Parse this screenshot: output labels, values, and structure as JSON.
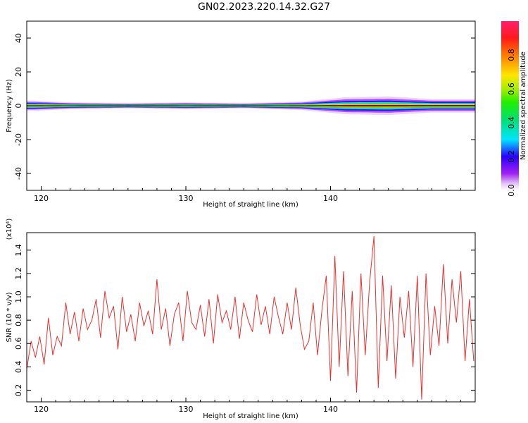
{
  "title": "GN02.2023.220.14.32.G27",
  "chart_data": [
    {
      "type": "heatmap",
      "xlabel": "Height of straight line (km)",
      "ylabel": "Frequency (Hz)",
      "xlim": [
        119,
        150
      ],
      "ylim": [
        -50,
        50
      ],
      "xticks": [
        "120",
        "130",
        "140"
      ],
      "yticks": [
        "40",
        "20",
        "0",
        "-20",
        "-40"
      ],
      "colorbar": {
        "label": "Normalized spectral amplitude",
        "ticks": [
          "0.0",
          "0.2",
          "0.4",
          "0.6",
          "0.8"
        ],
        "range": [
          0,
          1
        ]
      },
      "reference_line_hz": 0,
      "band_halfwidth_hz": [
        {
          "x": 119.5,
          "hz": 3
        },
        {
          "x": 122,
          "hz": 2
        },
        {
          "x": 126,
          "hz": 1.5
        },
        {
          "x": 130,
          "hz": 2
        },
        {
          "x": 134,
          "hz": 1.5
        },
        {
          "x": 138,
          "hz": 2.5
        },
        {
          "x": 141,
          "hz": 5
        },
        {
          "x": 144,
          "hz": 5.5
        },
        {
          "x": 147,
          "hz": 4
        },
        {
          "x": 149.5,
          "hz": 4
        }
      ]
    },
    {
      "type": "line",
      "xlabel": "Height of straight line (km)",
      "ylabel": "SNR (10 * v/v)",
      "yscale_label": "(x10⁴)",
      "xlim": [
        119,
        150
      ],
      "ylim": [
        0.1,
        1.55
      ],
      "xticks": [
        "120",
        "130",
        "140"
      ],
      "yticks": [
        "0.2",
        "0.4",
        "0.6",
        "0.8",
        "1.0",
        "1.2",
        "1.4"
      ],
      "color": "#e8312f",
      "series": [
        {
          "name": "",
          "x": [
            119.0,
            119.3,
            119.6,
            119.9,
            120.2,
            120.5,
            120.8,
            121.1,
            121.4,
            121.7,
            122.0,
            122.3,
            122.6,
            122.9,
            123.2,
            123.5,
            123.8,
            124.1,
            124.4,
            124.7,
            125.0,
            125.3,
            125.6,
            125.9,
            126.2,
            126.5,
            126.8,
            127.1,
            127.4,
            127.7,
            128.0,
            128.3,
            128.6,
            128.9,
            129.2,
            129.5,
            129.8,
            130.1,
            130.4,
            130.7,
            131.0,
            131.3,
            131.6,
            131.9,
            132.2,
            132.5,
            132.8,
            133.1,
            133.4,
            133.7,
            134.0,
            134.3,
            134.6,
            134.9,
            135.2,
            135.5,
            135.8,
            136.1,
            136.4,
            136.7,
            137.0,
            137.3,
            137.6,
            137.9,
            138.2,
            138.5,
            138.8,
            139.1,
            139.4,
            139.7,
            140.0,
            140.3,
            140.6,
            140.9,
            141.2,
            141.5,
            141.8,
            142.1,
            142.4,
            142.7,
            143.0,
            143.3,
            143.6,
            143.9,
            144.2,
            144.5,
            144.8,
            145.1,
            145.4,
            145.7,
            146.0,
            146.3,
            146.6,
            146.9,
            147.2,
            147.5,
            147.8,
            148.1,
            148.4,
            148.7,
            149.0,
            149.3,
            149.6,
            149.9
          ],
          "values": [
            0.38,
            0.62,
            0.48,
            0.66,
            0.42,
            0.82,
            0.5,
            0.66,
            0.58,
            0.95,
            0.68,
            0.87,
            0.62,
            0.9,
            0.72,
            0.8,
            0.98,
            0.65,
            1.05,
            0.82,
            0.92,
            0.55,
            1.0,
            0.7,
            0.85,
            0.62,
            0.95,
            0.75,
            0.88,
            0.68,
            1.15,
            0.72,
            0.9,
            0.58,
            0.85,
            0.95,
            0.62,
            1.05,
            0.78,
            0.72,
            0.93,
            0.66,
            0.98,
            0.6,
            1.02,
            0.78,
            0.88,
            0.72,
            1.0,
            0.64,
            0.95,
            0.8,
            0.7,
            1.02,
            0.76,
            0.92,
            0.68,
            1.0,
            0.83,
            0.68,
            0.95,
            0.72,
            1.08,
            0.76,
            0.55,
            0.62,
            0.95,
            0.5,
            0.88,
            1.18,
            0.28,
            1.35,
            0.4,
            1.22,
            0.32,
            1.05,
            0.18,
            1.2,
            0.5,
            1.12,
            1.52,
            0.22,
            1.18,
            0.45,
            1.1,
            0.3,
            1.0,
            0.65,
            1.05,
            0.4,
            1.18,
            0.12,
            1.2,
            0.5,
            0.92,
            0.58,
            1.28,
            0.6,
            1.15,
            0.78,
            1.22,
            0.45,
            0.98,
            0.45
          ]
        }
      ]
    }
  ]
}
